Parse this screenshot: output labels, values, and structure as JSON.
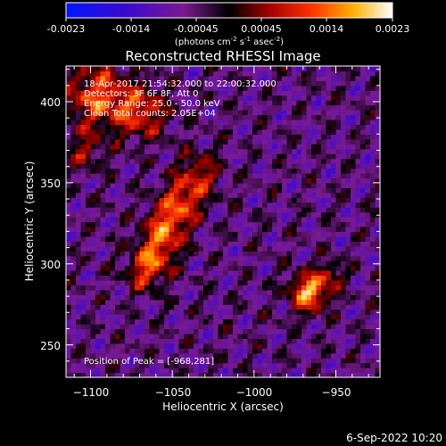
{
  "colorbar": {
    "ticks": [
      "-0.0023",
      "-0.0014",
      "-0.00045",
      "0.00045",
      "0.0014",
      "0.0023"
    ],
    "unit_prefix": "(photons cm",
    "unit_sup1": "-2",
    "unit_mid1": " s",
    "unit_sup2": "-1",
    "unit_mid2": " asec",
    "unit_sup3": "-2",
    "unit_suffix": ")",
    "range": [
      -0.0023,
      0.0023
    ]
  },
  "header": {
    "line1": "18-Apr-2017 21:54:32.000 to 22:00:32.000",
    "line2": "Detectors: 3F 6F 8F, Att 0",
    "line3": "Energy Range: 25.0 - 50.0 keV",
    "line4": "Clean     Total counts: 2.05E+04"
  },
  "peak_label": "Position of Peak = [-968,281]",
  "footer_date": "6-Sep-2022 10:20",
  "chart_data": {
    "type": "heatmap",
    "title": "Reconstructed RHESSI Image",
    "xlabel": "Heliocentric X (arcsec)",
    "ylabel": "Heliocentric Y (arcsec)",
    "xlim": [
      -1115,
      -923
    ],
    "ylim": [
      230,
      422
    ],
    "xticks": [
      -1100,
      -1050,
      -1000,
      -950
    ],
    "yticks": [
      250,
      300,
      350,
      400
    ],
    "xtick_labels": [
      "−1100",
      "−1050",
      "−1000",
      "−950"
    ],
    "ytick_labels": [
      "250",
      "300",
      "350",
      "400"
    ],
    "peak": [
      -968,
      281
    ],
    "sources": [
      {
        "x": -1097,
        "y": 402,
        "sigma": 14,
        "amp": 0.0017
      },
      {
        "x": -1070,
        "y": 392,
        "sigma": 11,
        "amp": 0.0014
      },
      {
        "x": -1105,
        "y": 368,
        "sigma": 8,
        "amp": 0.0009
      },
      {
        "x": -1035,
        "y": 355,
        "sigma": 9,
        "amp": 0.0012
      },
      {
        "x": -1045,
        "y": 338,
        "sigma": 9,
        "amp": 0.0015
      },
      {
        "x": -1055,
        "y": 322,
        "sigma": 9,
        "amp": 0.0016
      },
      {
        "x": -1062,
        "y": 305,
        "sigma": 9,
        "amp": 0.0015
      },
      {
        "x": -1068,
        "y": 292,
        "sigma": 8,
        "amp": 0.0011
      },
      {
        "x": -968,
        "y": 281,
        "sigma": 8,
        "amp": 0.0023
      },
      {
        "x": -955,
        "y": 292,
        "sigma": 6,
        "amp": 0.001
      }
    ]
  }
}
